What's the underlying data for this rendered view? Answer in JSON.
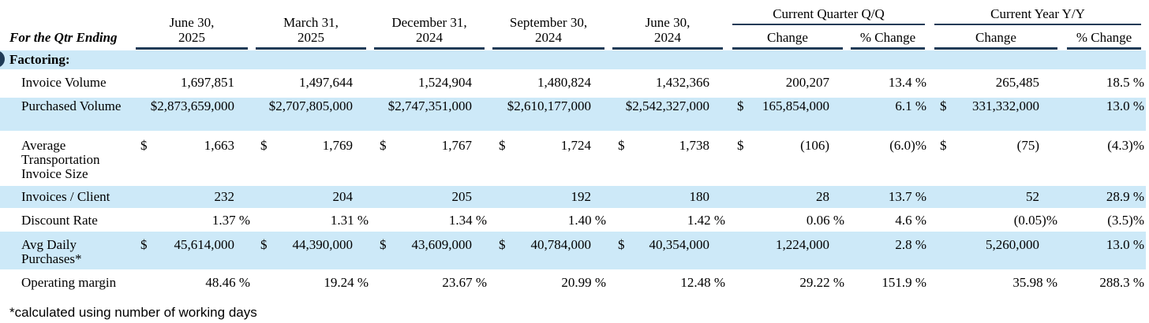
{
  "header": {
    "qtr_label": "For the Qtr Ending",
    "periods": [
      {
        "line1": "June 30,",
        "line2": "2025"
      },
      {
        "line1": "March 31,",
        "line2": "2025"
      },
      {
        "line1": "December 31,",
        "line2": "2024"
      },
      {
        "line1": "September 30,",
        "line2": "2024"
      },
      {
        "line1": "June 30,",
        "line2": "2024"
      }
    ],
    "qq_group": "Current Quarter Q/Q",
    "yy_group": "Current Year Y/Y",
    "change": "Change",
    "pct_change": "% Change"
  },
  "section": "Factoring:",
  "rows": [
    {
      "label": "Invoice Volume",
      "values": [
        "1,697,851",
        "1,497,644",
        "1,524,904",
        "1,480,824",
        "1,432,366",
        "200,207",
        "13.4 %",
        "265,485",
        "18.5 %"
      ],
      "cur": []
    },
    {
      "label": "Purchased Volume",
      "values": [
        "$2,873,659,000",
        "$2,707,805,000",
        "$2,747,351,000",
        "$2,610,177,000",
        "$2,542,327,000",
        "165,854,000",
        "6.1 %",
        "331,332,000",
        "13.0 %"
      ],
      "cur": [
        5,
        7
      ]
    },
    {
      "label": "Average Transportation Invoice Size",
      "values": [
        "1,663",
        "1,769",
        "1,767",
        "1,724",
        "1,738",
        "(106)",
        "(6.0)%",
        "(75)",
        "(4.3)%"
      ],
      "cur": [
        0,
        1,
        2,
        3,
        4,
        5,
        7
      ]
    },
    {
      "label": "Invoices / Client",
      "values": [
        "232",
        "204",
        "205",
        "192",
        "180",
        "28",
        "13.7 %",
        "52",
        "28.9 %"
      ],
      "cur": []
    },
    {
      "label": "Discount Rate",
      "values": [
        "1.37 %",
        "1.31 %",
        "1.34 %",
        "1.40 %",
        "1.42 %",
        "0.06 %",
        "4.6 %",
        "(0.05)%",
        "(3.5)%"
      ],
      "cur": []
    },
    {
      "label": "Avg Daily Purchases*",
      "values": [
        "45,614,000",
        "44,390,000",
        "43,609,000",
        "40,784,000",
        "40,354,000",
        "1,224,000",
        "2.8 %",
        "5,260,000",
        "13.0 %"
      ],
      "cur": [
        0,
        1,
        2,
        3,
        4
      ]
    },
    {
      "label": "Operating margin",
      "values": [
        "48.46 %",
        "19.24 %",
        "23.67 %",
        "20.99 %",
        "12.48 %",
        "29.22 %",
        "151.9 %",
        "35.98 %",
        "288.3 %"
      ],
      "cur": []
    }
  ],
  "currency_symbol": "$",
  "footnote": "*calculated using number of working days"
}
